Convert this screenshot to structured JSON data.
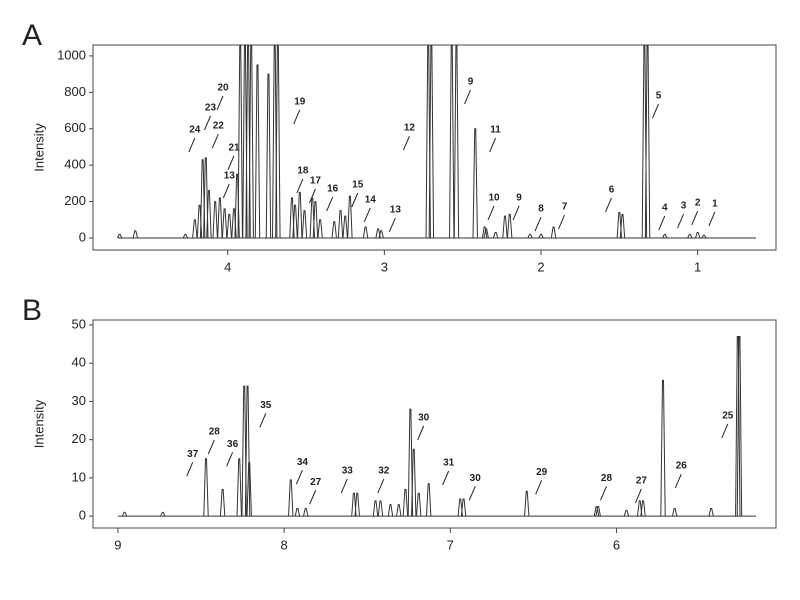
{
  "chart_data": [
    {
      "type": "line",
      "panel": "A",
      "y_label": "Intensity",
      "color": "#333333",
      "xlim": [
        4.86,
        0.5
      ],
      "ylim": [
        -66,
        1060
      ],
      "xticks": [
        4,
        3,
        2,
        1
      ],
      "yticks": [
        0,
        200,
        400,
        600,
        800,
        1000
      ],
      "x": [
        4.69,
        4.59,
        4.27,
        4.21,
        4.18,
        4.16,
        4.14,
        4.12,
        4.08,
        4.05,
        4.02,
        3.99,
        3.96,
        3.94,
        3.92,
        3.89,
        3.87,
        3.85,
        3.81,
        3.74,
        3.7,
        3.68,
        3.59,
        3.57,
        3.54,
        3.51,
        3.46,
        3.44,
        3.41,
        3.32,
        3.28,
        3.25,
        3.22,
        3.12,
        3.04,
        3.02,
        2.72,
        2.7,
        2.57,
        2.54,
        2.42,
        2.36,
        2.35,
        2.29,
        2.23,
        2.2,
        2.07,
        2.0,
        1.92,
        1.5,
        1.48,
        1.34,
        1.32,
        1.21,
        1.05,
        1.0,
        0.96
      ],
      "values": [
        20,
        40,
        20,
        100,
        180,
        430,
        440,
        260,
        200,
        220,
        160,
        130,
        160,
        350,
        1060,
        1060,
        1060,
        1060,
        950,
        900,
        1060,
        1060,
        220,
        180,
        250,
        150,
        220,
        200,
        100,
        90,
        150,
        120,
        230,
        60,
        50,
        40,
        1060,
        1060,
        1060,
        1060,
        600,
        60,
        50,
        30,
        120,
        130,
        20,
        20,
        60,
        140,
        130,
        1060,
        1060,
        20,
        20,
        30,
        15
      ],
      "annotations": [
        {
          "text": "24",
          "x": 4.21,
          "y": 593
        },
        {
          "text": "23",
          "x": 4.11,
          "y": 714
        },
        {
          "text": "22",
          "x": 4.06,
          "y": 615
        },
        {
          "text": "21",
          "x": 3.96,
          "y": 495
        },
        {
          "text": "13",
          "x": 3.99,
          "y": 340
        },
        {
          "text": "20",
          "x": 4.03,
          "y": 824
        },
        {
          "text": "19",
          "x": 3.54,
          "y": 747
        },
        {
          "text": "18",
          "x": 3.52,
          "y": 368
        },
        {
          "text": "17",
          "x": 3.44,
          "y": 313
        },
        {
          "text": "16",
          "x": 3.33,
          "y": 269
        },
        {
          "text": "15",
          "x": 3.17,
          "y": 291
        },
        {
          "text": "14",
          "x": 3.09,
          "y": 209
        },
        {
          "text": "13",
          "x": 2.93,
          "y": 154
        },
        {
          "text": "12",
          "x": 2.84,
          "y": 604
        },
        {
          "text": "9",
          "x": 2.45,
          "y": 857
        },
        {
          "text": "11",
          "x": 2.29,
          "y": 593
        },
        {
          "text": "10",
          "x": 2.3,
          "y": 220
        },
        {
          "text": "9",
          "x": 2.14,
          "y": 220
        },
        {
          "text": "8",
          "x": 2.0,
          "y": 159
        },
        {
          "text": "7",
          "x": 1.85,
          "y": 170
        },
        {
          "text": "6",
          "x": 1.55,
          "y": 264
        },
        {
          "text": "5",
          "x": 1.25,
          "y": 780
        },
        {
          "text": "4",
          "x": 1.21,
          "y": 165
        },
        {
          "text": "3",
          "x": 1.09,
          "y": 176
        },
        {
          "text": "2",
          "x": 1.0,
          "y": 192
        },
        {
          "text": "1",
          "x": 0.89,
          "y": 187
        }
      ]
    },
    {
      "type": "line",
      "panel": "B",
      "y_label": "Intensity",
      "color": "#333333",
      "xlim": [
        9.15,
        5.04
      ],
      "ylim": [
        -3.1,
        51.3
      ],
      "xticks": [
        9,
        8,
        7,
        6
      ],
      "yticks": [
        0,
        10,
        20,
        30,
        40,
        50
      ],
      "x": [
        8.96,
        8.73,
        8.47,
        8.37,
        8.27,
        8.24,
        8.22,
        8.21,
        7.96,
        7.92,
        7.87,
        7.58,
        7.56,
        7.45,
        7.42,
        7.36,
        7.31,
        7.27,
        7.24,
        7.22,
        7.19,
        7.13,
        6.94,
        6.92,
        6.54,
        6.12,
        6.11,
        5.94,
        5.86,
        5.84,
        5.72,
        5.65,
        5.43,
        5.27,
        5.26
      ],
      "values": [
        1,
        1,
        15,
        7,
        15,
        34,
        34,
        14,
        9.5,
        2,
        2,
        6,
        6,
        4,
        4,
        3,
        3,
        7,
        28,
        17.5,
        6,
        8.5,
        4.5,
        4.5,
        6.5,
        2.5,
        2.5,
        1.5,
        4,
        4,
        35.5,
        2,
        2,
        47,
        47
      ],
      "annotations": [
        {
          "text": "37",
          "x": 8.55,
          "y": 16.2
        },
        {
          "text": "28",
          "x": 8.42,
          "y": 22
        },
        {
          "text": "36",
          "x": 8.31,
          "y": 18.8
        },
        {
          "text": "35",
          "x": 8.11,
          "y": 29
        },
        {
          "text": "34",
          "x": 7.89,
          "y": 14.1
        },
        {
          "text": "27",
          "x": 7.81,
          "y": 8.9
        },
        {
          "text": "33",
          "x": 7.62,
          "y": 11.8
        },
        {
          "text": "32",
          "x": 7.4,
          "y": 11.8
        },
        {
          "text": "30",
          "x": 7.16,
          "y": 25.7
        },
        {
          "text": "31",
          "x": 7.01,
          "y": 13.9
        },
        {
          "text": "30",
          "x": 6.85,
          "y": 9.9
        },
        {
          "text": "29",
          "x": 6.45,
          "y": 11.5
        },
        {
          "text": "28",
          "x": 6.06,
          "y": 9.9
        },
        {
          "text": "27",
          "x": 5.85,
          "y": 9.2
        },
        {
          "text": "26",
          "x": 5.61,
          "y": 13.1
        },
        {
          "text": "25",
          "x": 5.33,
          "y": 26.2
        }
      ]
    }
  ]
}
